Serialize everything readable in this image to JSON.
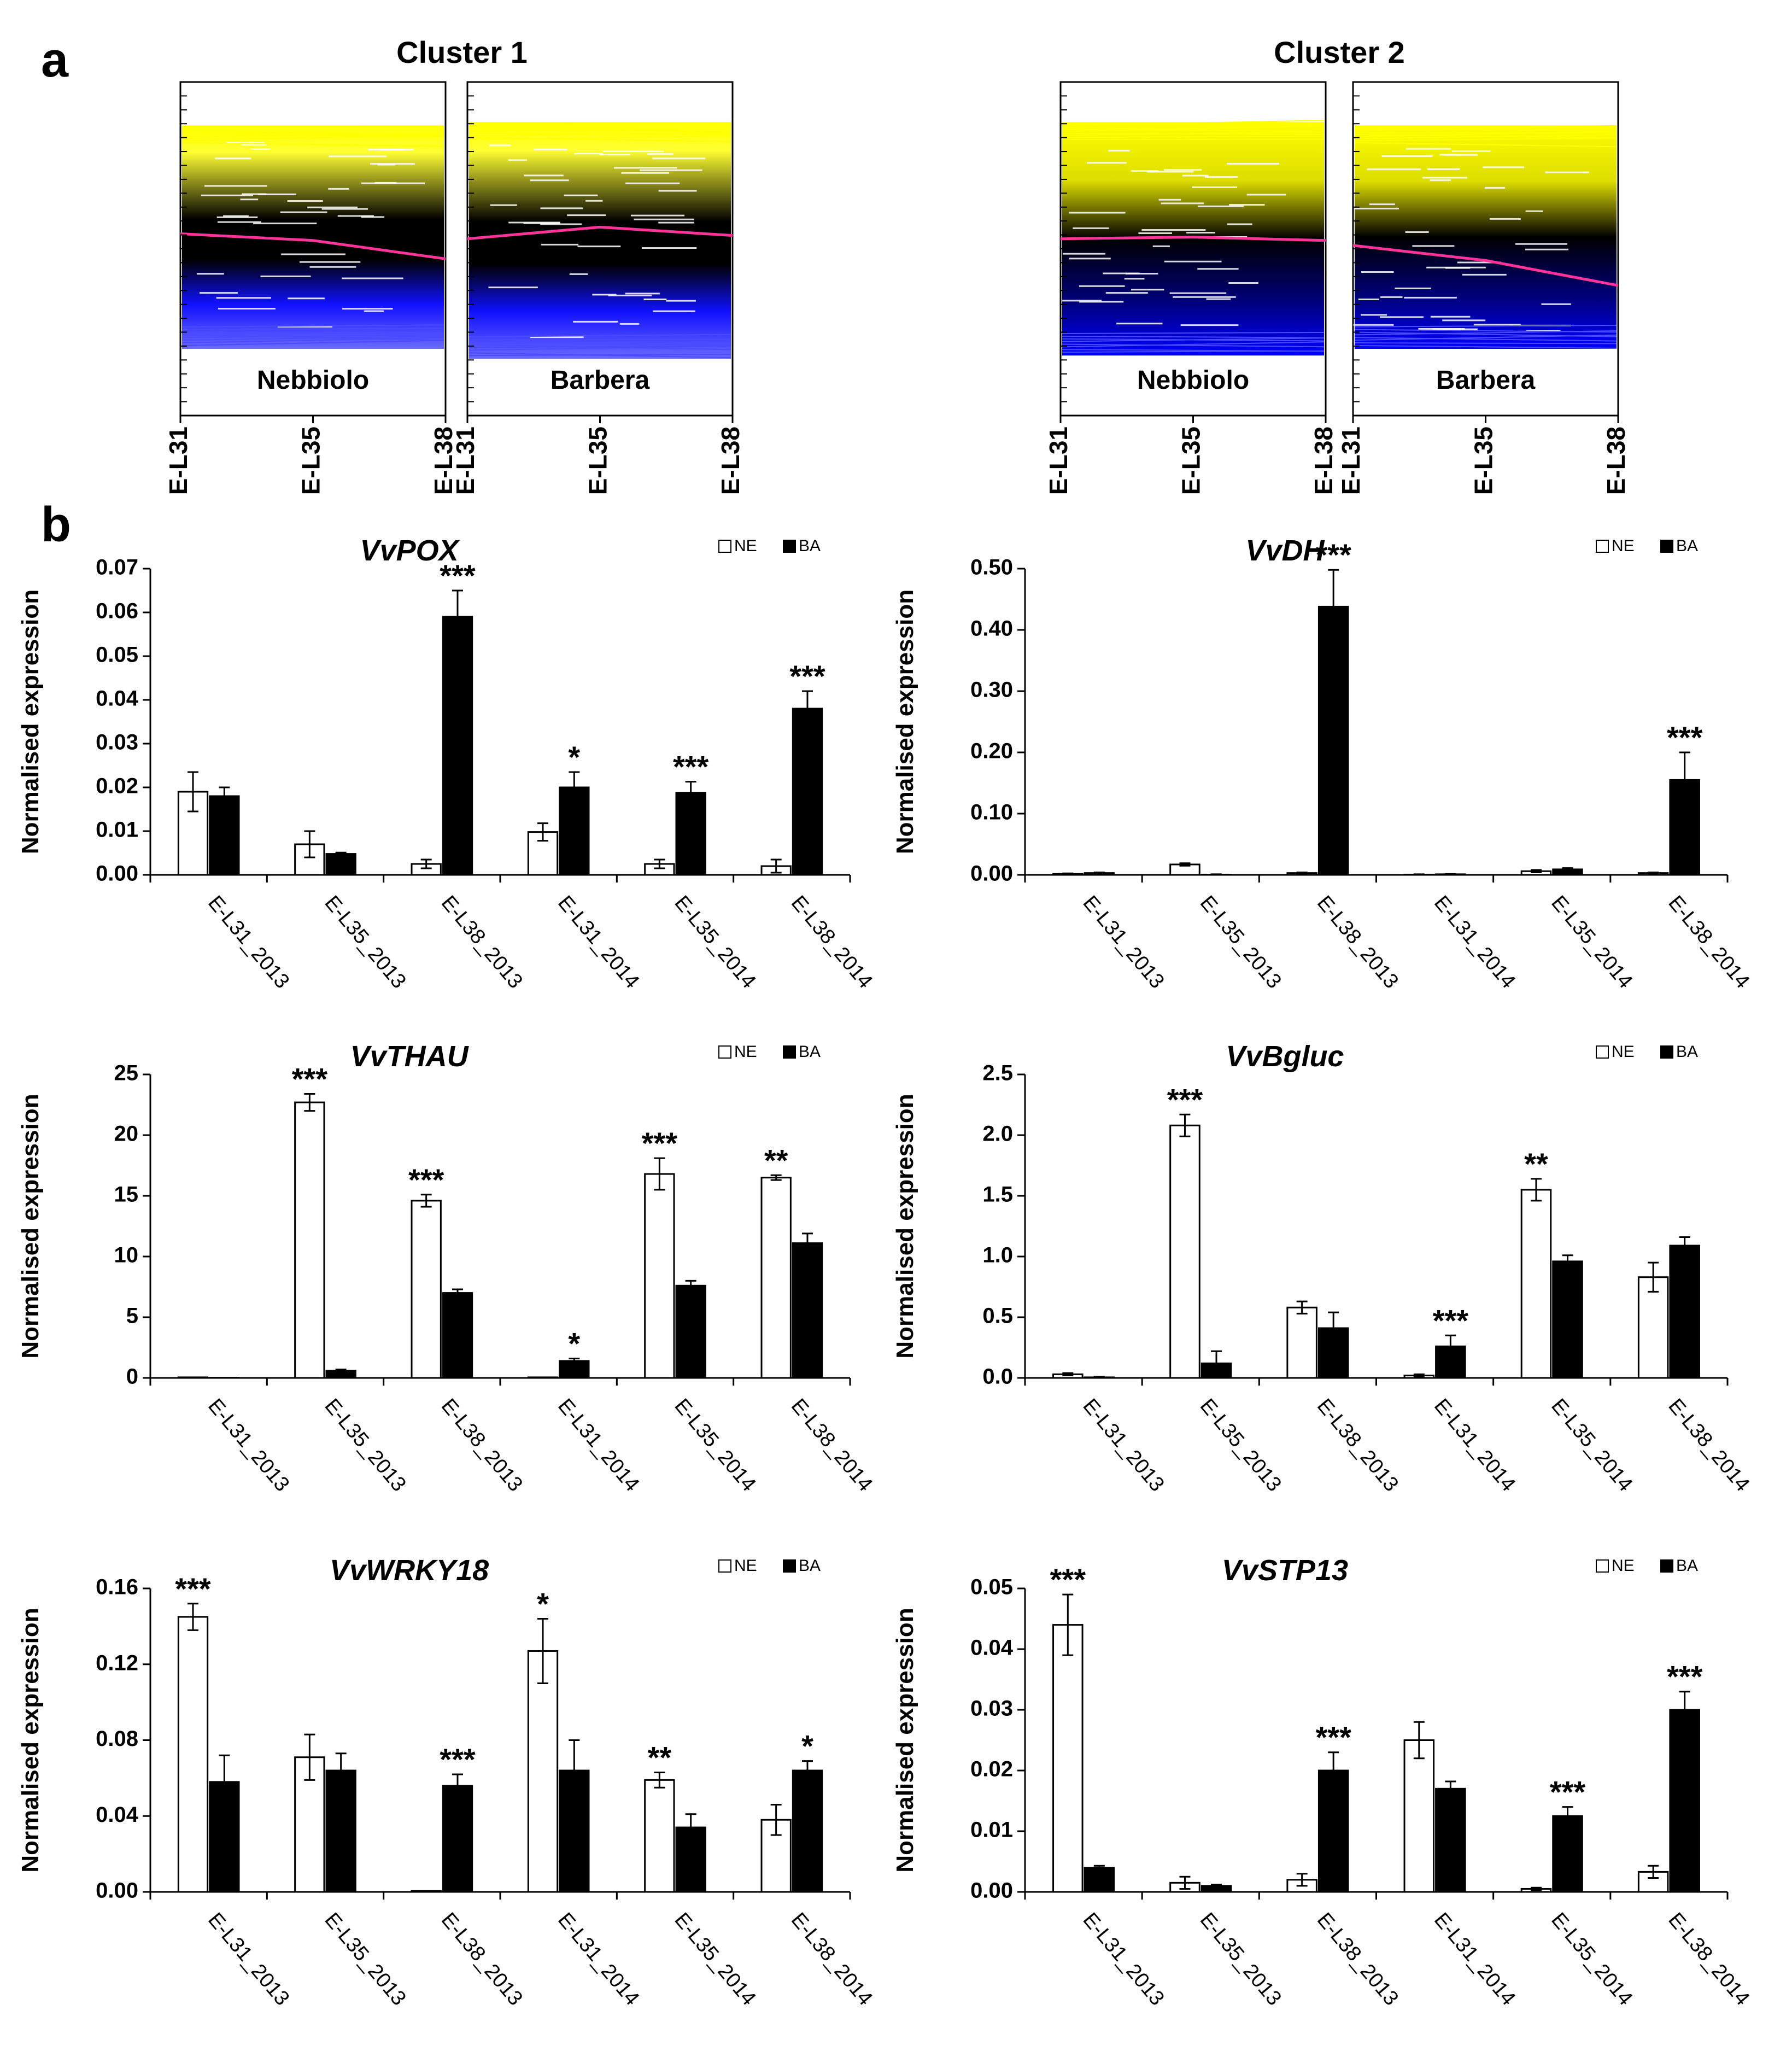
{
  "panel_labels": {
    "a": "a",
    "b": "b"
  },
  "legend": {
    "ne": "NE",
    "ba": "BA"
  },
  "ylabel": "Normalised expression",
  "clusters": [
    {
      "title": "Cluster 1",
      "left_label": "Nebbiolo",
      "right_label": "Barbera",
      "ticks": [
        "E-L31",
        "E-L35",
        "E-L38"
      ]
    },
    {
      "title": "Cluster 2",
      "left_label": "Nebbiolo",
      "right_label": "Barbera",
      "ticks": [
        "E-L31",
        "E-L35",
        "E-L38"
      ]
    }
  ],
  "colors": {
    "ne_fill": "#ffffff",
    "ba_fill": "#000000",
    "profile_high": "#ffff00",
    "profile_mid": "#000000",
    "profile_low": "#0000ff",
    "centroid": "#ff3399"
  },
  "chart_data": [
    {
      "type": "bar",
      "title": "VvPOX",
      "categories": [
        "E-L31_2013",
        "E-L35_2013",
        "E-L38_2013",
        "E-L31_2014",
        "E-L35_2014",
        "E-L38_2014"
      ],
      "series": [
        {
          "name": "NE",
          "values": [
            0.019,
            0.007,
            0.0025,
            0.0098,
            0.0025,
            0.002
          ],
          "errors": [
            0.0045,
            0.003,
            0.001,
            0.002,
            0.001,
            0.0015
          ]
        },
        {
          "name": "BA",
          "values": [
            0.018,
            0.0048,
            0.059,
            0.02,
            0.0188,
            0.038
          ],
          "errors": [
            0.002,
            0.0003,
            0.006,
            0.0035,
            0.0025,
            0.004
          ]
        }
      ],
      "significance": [
        [
          "",
          ""
        ],
        [
          "",
          ""
        ],
        [
          "",
          "***"
        ],
        [
          "",
          "*"
        ],
        [
          "",
          "***"
        ],
        [
          "",
          "***"
        ]
      ],
      "ylim": [
        0,
        0.07
      ],
      "yticks": [
        "0.00",
        "0.01",
        "0.02",
        "0.03",
        "0.04",
        "0.05",
        "0.06",
        "0.07"
      ]
    },
    {
      "type": "bar",
      "title": "VvDH",
      "categories": [
        "E-L31_2013",
        "E-L35_2013",
        "E-L38_2013",
        "E-L31_2014",
        "E-L35_2014",
        "E-L38_2014"
      ],
      "series": [
        {
          "name": "NE",
          "values": [
            0.0015,
            0.017,
            0.003,
            0.0005,
            0.006,
            0.003
          ],
          "errors": [
            0.001,
            0.002,
            0.001,
            0.0005,
            0.002,
            0.001
          ]
        },
        {
          "name": "BA",
          "values": [
            0.003,
            0.0005,
            0.438,
            0.001,
            0.009,
            0.155
          ],
          "errors": [
            0.001,
            0.0005,
            0.06,
            0.0005,
            0.002,
            0.045
          ]
        }
      ],
      "significance": [
        [
          "",
          ""
        ],
        [
          "",
          ""
        ],
        [
          "",
          "***"
        ],
        [
          "",
          ""
        ],
        [
          "",
          ""
        ],
        [
          "",
          "***"
        ]
      ],
      "ylim": [
        0,
        0.5
      ],
      "yticks": [
        "0.00",
        "0.10",
        "0.20",
        "0.30",
        "0.40",
        "0.50"
      ]
    },
    {
      "type": "bar",
      "title": "VvTHAU",
      "categories": [
        "E-L31_2013",
        "E-L35_2013",
        "E-L38_2013",
        "E-L31_2014",
        "E-L35_2014",
        "E-L38_2014"
      ],
      "series": [
        {
          "name": "NE",
          "values": [
            0.05,
            22.7,
            14.6,
            0.05,
            16.8,
            16.5
          ],
          "errors": [
            0,
            0.7,
            0.5,
            0,
            1.3,
            0.2
          ]
        },
        {
          "name": "BA",
          "values": [
            0.02,
            0.6,
            7.0,
            1.4,
            7.6,
            11.1
          ],
          "errors": [
            0,
            0.1,
            0.3,
            0.2,
            0.4,
            0.8
          ]
        }
      ],
      "significance": [
        [
          "",
          ""
        ],
        [
          "***",
          ""
        ],
        [
          "***",
          ""
        ],
        [
          "",
          "*"
        ],
        [
          "***",
          ""
        ],
        [
          "**",
          ""
        ]
      ],
      "ylim": [
        0,
        25
      ],
      "yticks": [
        "0",
        "5",
        "10",
        "15",
        "20",
        "25"
      ]
    },
    {
      "type": "bar",
      "title": "VvBgluc",
      "categories": [
        "E-L31_2013",
        "E-L35_2013",
        "E-L38_2013",
        "E-L31_2014",
        "E-L35_2014",
        "E-L38_2014"
      ],
      "series": [
        {
          "name": "NE",
          "values": [
            0.03,
            2.08,
            0.58,
            0.02,
            1.55,
            0.83
          ],
          "errors": [
            0.01,
            0.09,
            0.05,
            0.01,
            0.09,
            0.12
          ]
        },
        {
          "name": "BA",
          "values": [
            0.005,
            0.12,
            0.41,
            0.26,
            0.96,
            1.09
          ],
          "errors": [
            0.005,
            0.1,
            0.13,
            0.09,
            0.05,
            0.07
          ]
        }
      ],
      "significance": [
        [
          "",
          ""
        ],
        [
          "***",
          ""
        ],
        [
          "",
          ""
        ],
        [
          "",
          "***"
        ],
        [
          "**",
          ""
        ],
        [
          "",
          ""
        ]
      ],
      "ylim": [
        0,
        2.5
      ],
      "yticks": [
        "0.0",
        "0.5",
        "1.0",
        "1.5",
        "2.0",
        "2.5"
      ]
    },
    {
      "type": "bar",
      "title": "VvWRKY18",
      "categories": [
        "E-L31_2013",
        "E-L35_2013",
        "E-L38_2013",
        "E-L31_2014",
        "E-L35_2014",
        "E-L38_2014"
      ],
      "series": [
        {
          "name": "NE",
          "values": [
            0.145,
            0.071,
            0.0005,
            0.127,
            0.059,
            0.038
          ],
          "errors": [
            0.007,
            0.012,
            0,
            0.017,
            0.004,
            0.008
          ]
        },
        {
          "name": "BA",
          "values": [
            0.058,
            0.064,
            0.056,
            0.064,
            0.034,
            0.064
          ],
          "errors": [
            0.014,
            0.009,
            0.006,
            0.016,
            0.007,
            0.005
          ]
        }
      ],
      "significance": [
        [
          "***",
          ""
        ],
        [
          "",
          ""
        ],
        [
          "",
          "***"
        ],
        [
          "*",
          ""
        ],
        [
          "**",
          ""
        ],
        [
          "",
          "*"
        ]
      ],
      "ylim": [
        0,
        0.16
      ],
      "yticks": [
        "0.00",
        "0.04",
        "0.08",
        "0.12",
        "0.16"
      ]
    },
    {
      "type": "bar",
      "title": "VvSTP13",
      "categories": [
        "E-L31_2013",
        "E-L35_2013",
        "E-L38_2013",
        "E-L31_2014",
        "E-L35_2014",
        "E-L38_2014"
      ],
      "series": [
        {
          "name": "NE",
          "values": [
            0.044,
            0.0015,
            0.002,
            0.025,
            0.0005,
            0.0033
          ],
          "errors": [
            0.005,
            0.001,
            0.001,
            0.003,
            0.0002,
            0.001
          ]
        },
        {
          "name": "BA",
          "values": [
            0.004,
            0.001,
            0.02,
            0.017,
            0.0125,
            0.03
          ],
          "errors": [
            0.0003,
            0.0002,
            0.003,
            0.0012,
            0.0015,
            0.003
          ]
        }
      ],
      "significance": [
        [
          "***",
          ""
        ],
        [
          "",
          ""
        ],
        [
          "",
          "***"
        ],
        [
          "",
          ""
        ],
        [
          "",
          "***"
        ],
        [
          "",
          "***"
        ]
      ],
      "ylim": [
        0,
        0.05
      ],
      "yticks": [
        "0.00",
        "0.01",
        "0.02",
        "0.03",
        "0.04",
        "0.05"
      ]
    }
  ]
}
